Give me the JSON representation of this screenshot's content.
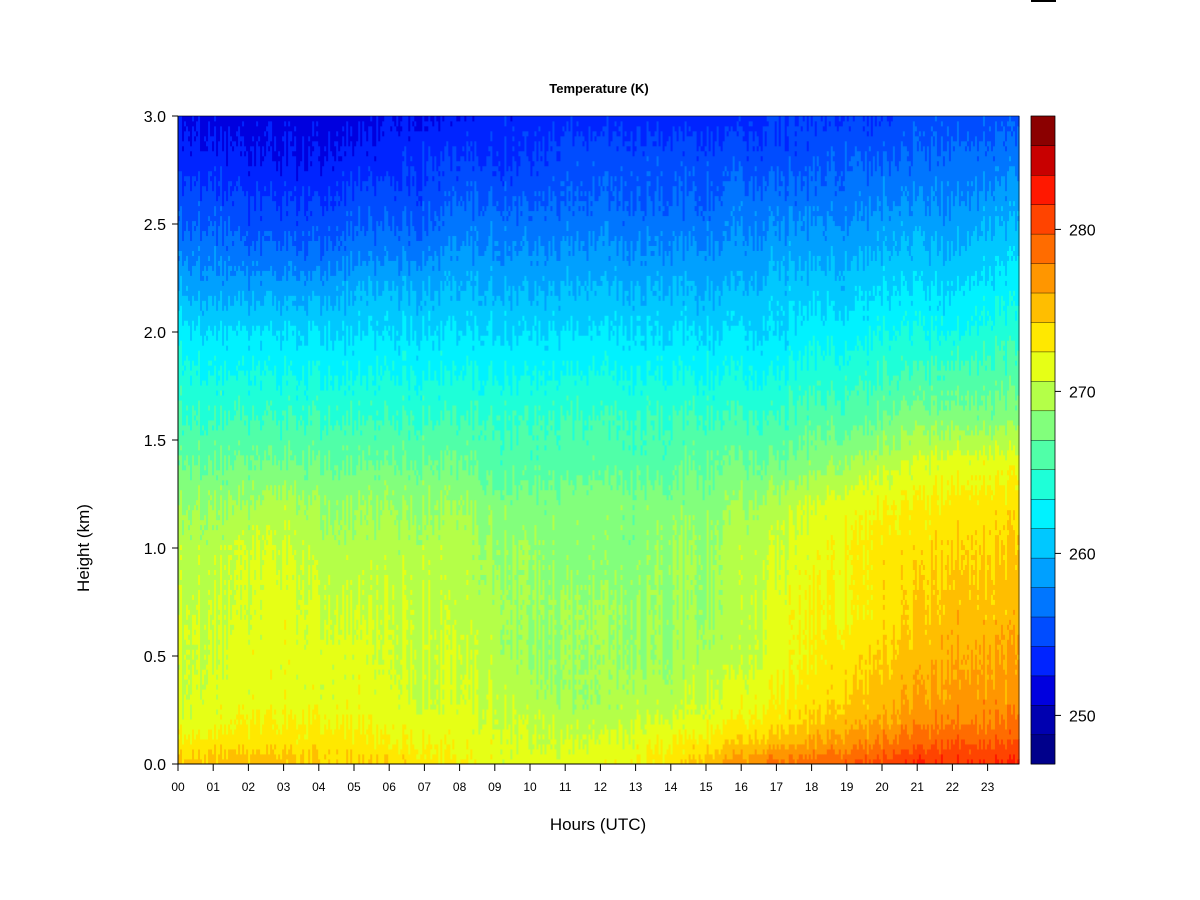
{
  "chart_data": {
    "type": "heatmap",
    "title": "Temperature (K)",
    "xlabel": "Hours (UTC)",
    "ylabel": "Height (km)",
    "x_ticks": [
      "00",
      "01",
      "02",
      "03",
      "04",
      "05",
      "06",
      "07",
      "08",
      "09",
      "10",
      "11",
      "12",
      "13",
      "14",
      "15",
      "16",
      "17",
      "18",
      "19",
      "20",
      "21",
      "22",
      "23"
    ],
    "y_ticks": [
      "0.0",
      "0.5",
      "1.0",
      "1.5",
      "2.0",
      "2.5",
      "3.0"
    ],
    "xlim": [
      0,
      23.9
    ],
    "ylim": [
      0,
      3.0
    ],
    "colorbar": {
      "ticks": [
        "250",
        "260",
        "270",
        "280"
      ],
      "tick_values": [
        250,
        260,
        270,
        280
      ],
      "range": [
        248,
        288
      ],
      "step": 2,
      "colors": [
        "#00008B",
        "#0000B0",
        "#0000DF",
        "#0024FF",
        "#004CFF",
        "#0076FF",
        "#00A0FF",
        "#00C8FF",
        "#00F2FF",
        "#1EFFD8",
        "#50FFA8",
        "#82FF7C",
        "#B4FF48",
        "#E6FF16",
        "#FFE800",
        "#FFBE00",
        "#FF9600",
        "#FF6C00",
        "#FF4400",
        "#FF1800",
        "#C80000",
        "#8B0000"
      ]
    },
    "hours": [
      0,
      1,
      2,
      3,
      4,
      5,
      6,
      7,
      8,
      9,
      10,
      11,
      12,
      13,
      14,
      15,
      16,
      17,
      18,
      19,
      20,
      21,
      22,
      23,
      24
    ],
    "heights_km": [
      0.0,
      0.1,
      0.2,
      0.3,
      0.5,
      0.7,
      1.0,
      1.2,
      1.4,
      1.6,
      1.8,
      2.0,
      2.2,
      2.4,
      2.6,
      2.8,
      3.0
    ],
    "temperature_K": [
      [
        279,
        276,
        275,
        274,
        274,
        274,
        273,
        272,
        270,
        268,
        267,
        265,
        262,
        259,
        257,
        255,
        254
      ],
      [
        279,
        277,
        275,
        275,
        274,
        274,
        273,
        272,
        270,
        268,
        266,
        264,
        261,
        259,
        257,
        255,
        253
      ],
      [
        279,
        277,
        276,
        275,
        275,
        274,
        274,
        272,
        270,
        268,
        266,
        264,
        261,
        258,
        256,
        254,
        253
      ],
      [
        279,
        277,
        276,
        275,
        275,
        275,
        274,
        273,
        270,
        268,
        266,
        264,
        261,
        258,
        256,
        254,
        253
      ],
      [
        278,
        277,
        276,
        275,
        275,
        274,
        273,
        272,
        270,
        268,
        266,
        264,
        261,
        258,
        256,
        254,
        253
      ],
      [
        278,
        277,
        276,
        275,
        275,
        274,
        273,
        272,
        270,
        268,
        266,
        264,
        262,
        259,
        257,
        255,
        253
      ],
      [
        278,
        276,
        275,
        275,
        274,
        274,
        273,
        272,
        270,
        268,
        266,
        264,
        262,
        259,
        257,
        255,
        254
      ],
      [
        277,
        276,
        275,
        274,
        274,
        274,
        273,
        272,
        270,
        268,
        266,
        264,
        262,
        259,
        257,
        256,
        254
      ],
      [
        276,
        275,
        275,
        274,
        274,
        273,
        273,
        272,
        270,
        268,
        266,
        264,
        262,
        260,
        258,
        256,
        254
      ],
      [
        275,
        275,
        274,
        274,
        273,
        273,
        272,
        271,
        269,
        268,
        266,
        264,
        262,
        260,
        258,
        256,
        255
      ],
      [
        275,
        274,
        274,
        273,
        272,
        272,
        272,
        271,
        269,
        268,
        266,
        264,
        262,
        260,
        258,
        256,
        255
      ],
      [
        275,
        274,
        273,
        272,
        272,
        272,
        271,
        271,
        269,
        268,
        266,
        264,
        262,
        260,
        258,
        257,
        255
      ],
      [
        275,
        274,
        273,
        272,
        272,
        272,
        271,
        271,
        269,
        268,
        266,
        264,
        262,
        260,
        258,
        257,
        255
      ],
      [
        276,
        275,
        274,
        273,
        272,
        272,
        271,
        271,
        269,
        268,
        266,
        264,
        262,
        260,
        258,
        257,
        255
      ],
      [
        277,
        276,
        274,
        273,
        272,
        272,
        272,
        271,
        269,
        268,
        266,
        264,
        262,
        260,
        258,
        257,
        255
      ],
      [
        279,
        277,
        275,
        274,
        273,
        272,
        272,
        271,
        270,
        268,
        266,
        264,
        262,
        260,
        258,
        257,
        255
      ],
      [
        281,
        278,
        276,
        275,
        273,
        273,
        273,
        272,
        270,
        268,
        266,
        264,
        262,
        260,
        259,
        257,
        255
      ],
      [
        283,
        279,
        277,
        276,
        275,
        275,
        274,
        273,
        270,
        268,
        266,
        264,
        263,
        261,
        259,
        257,
        256
      ],
      [
        283,
        280,
        278,
        277,
        276,
        276,
        275,
        274,
        271,
        269,
        267,
        265,
        263,
        261,
        259,
        257,
        256
      ],
      [
        284,
        281,
        279,
        278,
        277,
        276,
        276,
        275,
        272,
        269,
        267,
        265,
        263,
        261,
        259,
        258,
        256
      ],
      [
        285,
        282,
        280,
        279,
        278,
        277,
        277,
        276,
        273,
        270,
        268,
        266,
        264,
        262,
        260,
        258,
        256
      ],
      [
        286,
        283,
        281,
        280,
        279,
        278,
        277,
        276,
        274,
        271,
        268,
        266,
        264,
        262,
        260,
        258,
        257
      ],
      [
        286,
        284,
        282,
        281,
        280,
        279,
        278,
        277,
        275,
        271,
        269,
        266,
        264,
        262,
        260,
        259,
        257
      ],
      [
        286,
        284,
        282,
        281,
        280,
        279,
        278,
        277,
        275,
        271,
        269,
        267,
        265,
        263,
        261,
        259,
        257
      ],
      [
        286,
        284,
        282,
        281,
        280,
        279,
        278,
        277,
        275,
        271,
        269,
        267,
        265,
        263,
        261,
        259,
        257
      ]
    ]
  }
}
